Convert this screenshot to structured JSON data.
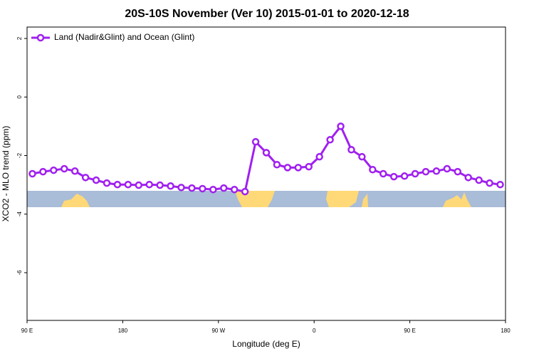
{
  "chart_data": {
    "type": "line",
    "title": "20S-10S November (Ver 10)   2015-01-01 to 2020-12-18",
    "xlabel": "Longitude (deg E)",
    "ylabel": "XCO2 - MLO trend (ppm)",
    "x": [
      95,
      105,
      115,
      125,
      135,
      145,
      155,
      165,
      175,
      185,
      195,
      205,
      215,
      225,
      235,
      245,
      255,
      265,
      275,
      285,
      295,
      305,
      315,
      325,
      335,
      345,
      355,
      365,
      375,
      385,
      395,
      405,
      415,
      425,
      435,
      445,
      455,
      465,
      475,
      485,
      495,
      505,
      515,
      525,
      535
    ],
    "series": [
      {
        "name": "Land (Nadir&Glint) and Ocean (Glint)",
        "color": "#a020f0",
        "values": [
          -2.62,
          -2.55,
          -2.5,
          -2.45,
          -2.53,
          -2.75,
          -2.84,
          -2.94,
          -2.99,
          -2.99,
          -3.01,
          -2.99,
          -3.01,
          -3.04,
          -3.09,
          -3.11,
          -3.13,
          -3.16,
          -3.11,
          -3.16,
          -3.23,
          -1.53,
          -1.9,
          -2.31,
          -2.41,
          -2.41,
          -2.38,
          -2.04,
          -1.46,
          -1.0,
          -1.8,
          -2.04,
          -2.48,
          -2.62,
          -2.72,
          -2.7,
          -2.62,
          -2.55,
          -2.53,
          -2.45,
          -2.55,
          -2.75,
          -2.84,
          -2.94,
          -2.99
        ]
      }
    ],
    "xlim": [
      90,
      540
    ],
    "xticks": [
      {
        "value": 90,
        "label": "90 E"
      },
      180,
      {
        "value": 270,
        "label": "90 W"
      },
      {
        "value": 360,
        "label": "0"
      },
      {
        "value": 450,
        "label": "90 E"
      },
      {
        "value": 540,
        "label": "180"
      }
    ],
    "ylim": [
      2.39,
      -7.63
    ],
    "yticks": [
      2,
      0,
      -2,
      -4,
      -6
    ],
    "legend": "top-left"
  }
}
